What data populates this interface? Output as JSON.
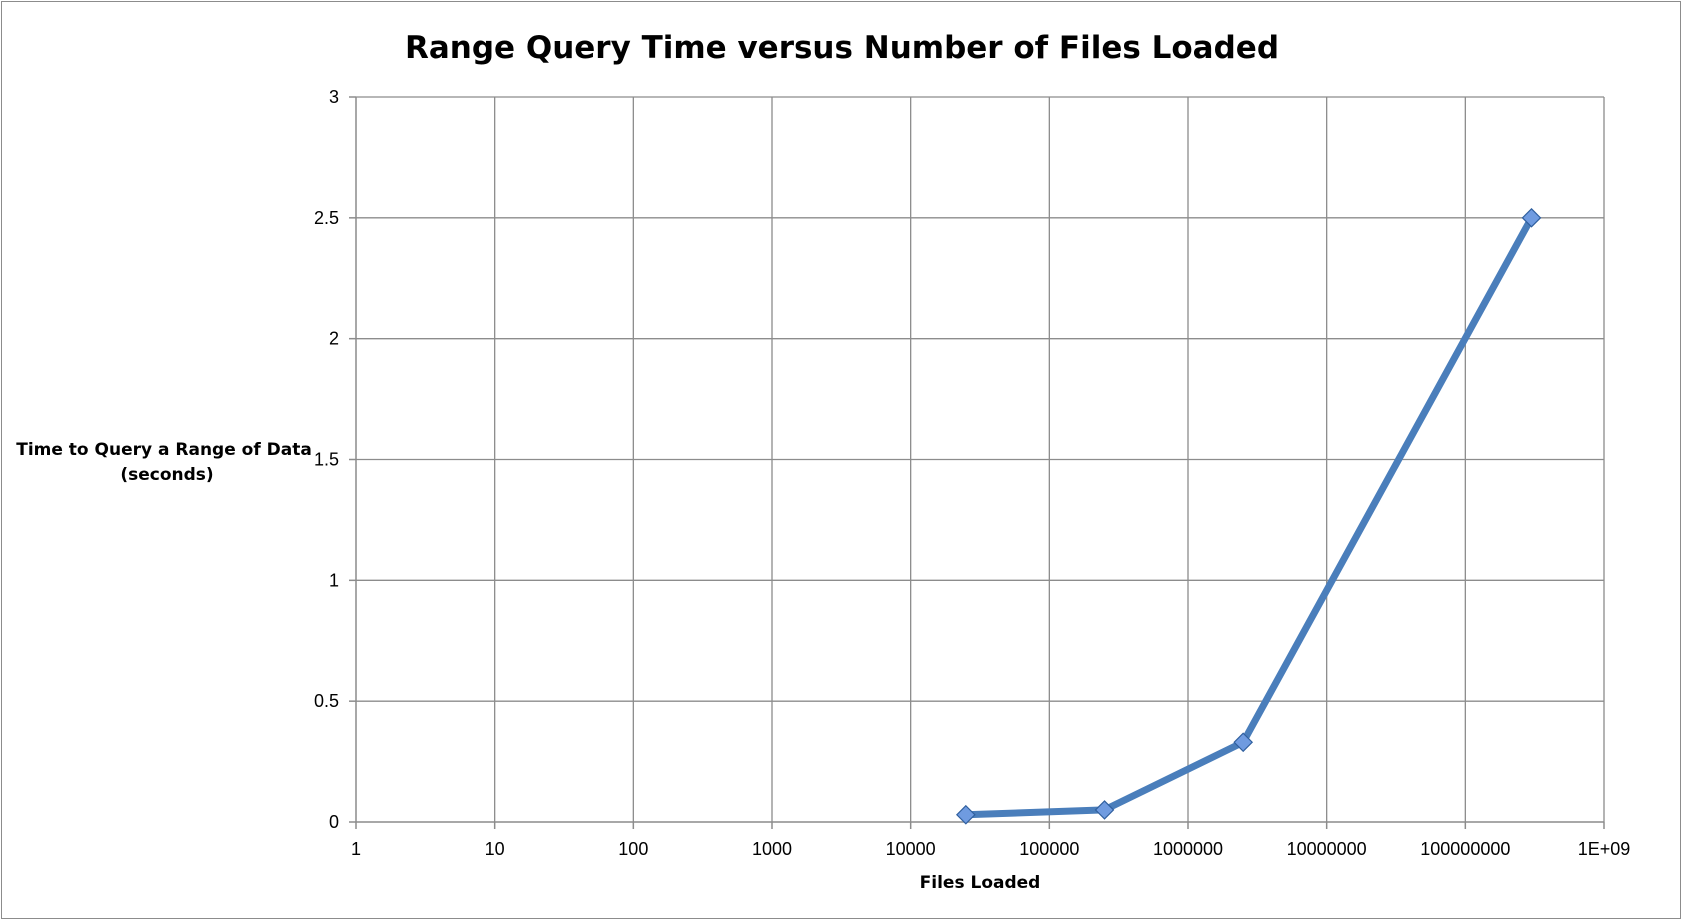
{
  "chart_data": {
    "type": "line",
    "title": "Range Query Time versus Number of Files Loaded",
    "xlabel": "Files Loaded",
    "ylabel_lines": [
      "Time to Query a Range of Data",
      "(seconds)"
    ],
    "x_scale": "log10",
    "xlim": [
      1,
      1000000000
    ],
    "ylim": [
      0,
      3
    ],
    "x_ticks": [
      "1",
      "10",
      "100",
      "1000",
      "10000",
      "100000",
      "1000000",
      "10000000",
      "100000000",
      "1E+09"
    ],
    "y_ticks": [
      "0",
      "0.5",
      "1",
      "1.5",
      "2",
      "2.5",
      "3"
    ],
    "grid": true,
    "legend": "none",
    "series": [
      {
        "color": "#4a7ebb",
        "marker": "diamond",
        "x": [
          25000,
          250000,
          2500000,
          300000000
        ],
        "y": [
          0.03,
          0.05,
          0.33,
          2.5
        ]
      }
    ]
  }
}
